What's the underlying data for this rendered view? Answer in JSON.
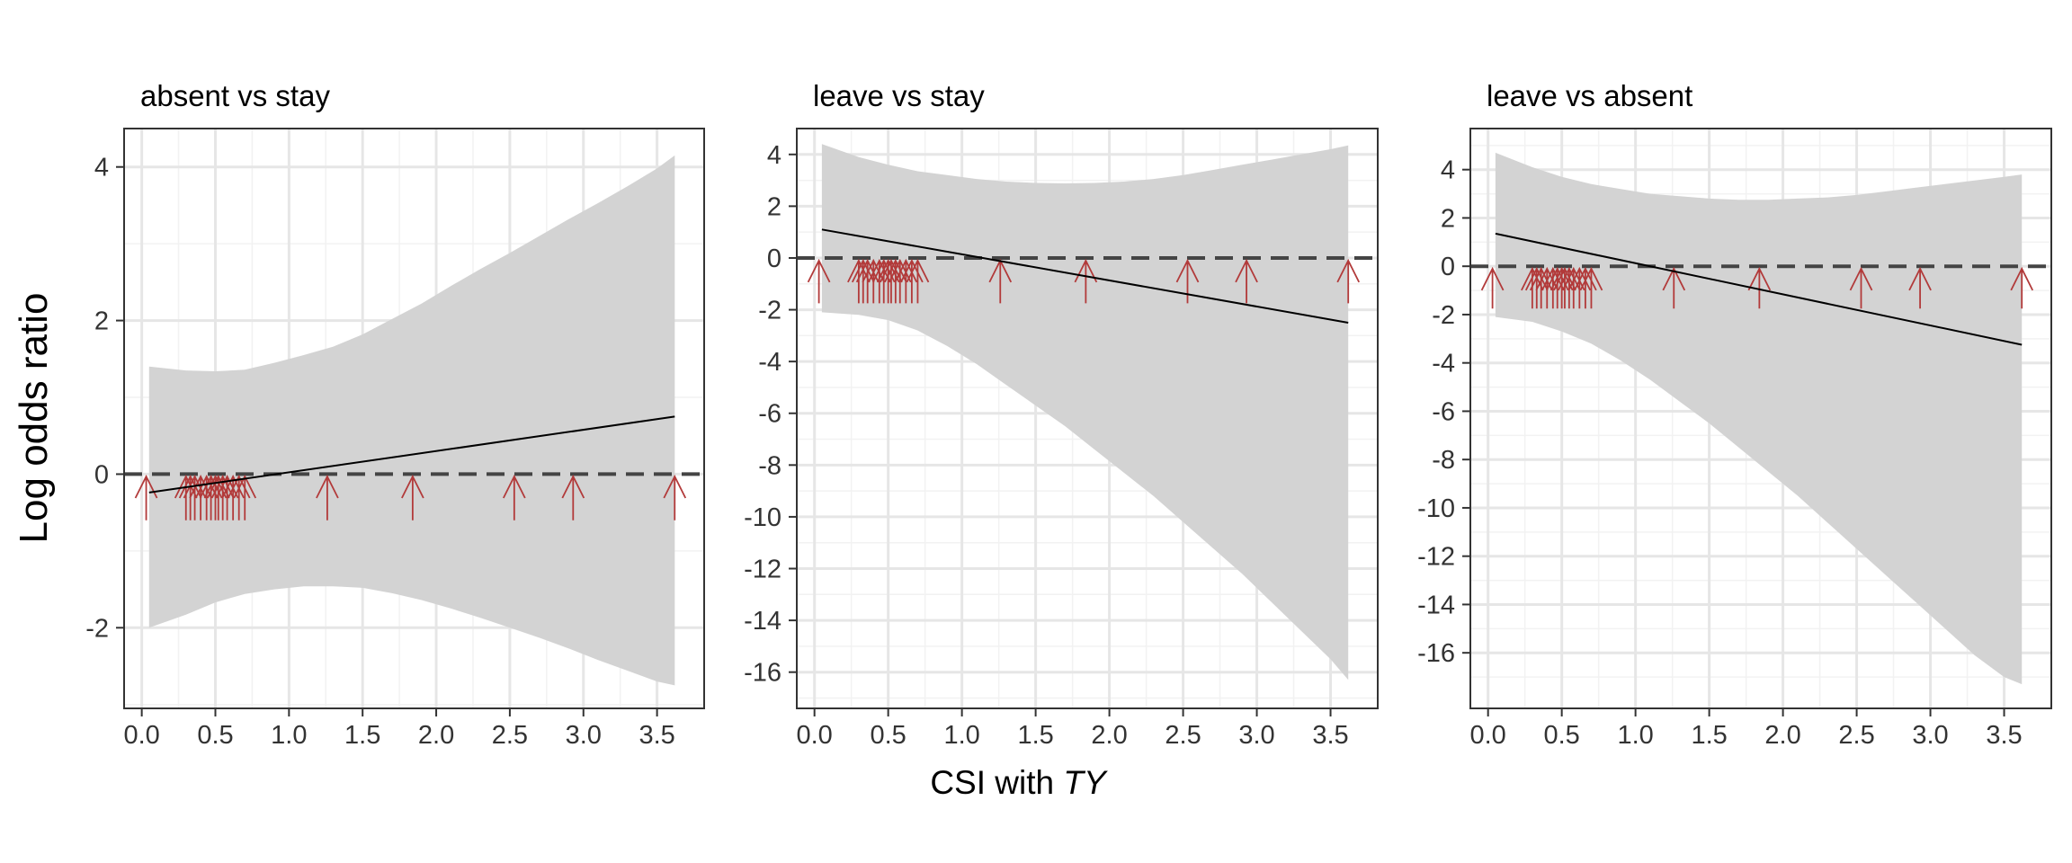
{
  "figure": {
    "ylabel": "Log odds ratio",
    "xlabel_main": "CSI with ",
    "xlabel_italic": "TY"
  },
  "colors": {
    "band": "#d3d3d3",
    "line": "#000000",
    "reference": "#444444",
    "rug": "#b23a3a",
    "grid_major": "#e6e6e6",
    "grid_minor": "#f2f2f2",
    "border": "#333333"
  },
  "chart_data": [
    {
      "type": "line",
      "title": "absent vs stay",
      "xlim": [
        -0.12,
        3.82
      ],
      "ylim": [
        -3.05,
        4.5
      ],
      "xticks": [
        0.0,
        0.5,
        1.0,
        1.5,
        2.0,
        2.5,
        3.0,
        3.5
      ],
      "xtick_labels": [
        "0.0",
        "0.5",
        "1.0",
        "1.5",
        "2.0",
        "2.5",
        "3.0",
        "3.5"
      ],
      "yticks": [
        -2,
        0,
        2,
        4
      ],
      "ytick_labels": [
        "-2",
        "0",
        "2",
        "4"
      ],
      "reference_line": 0,
      "fit": {
        "x": [
          0.05,
          3.62
        ],
        "y": [
          -0.24,
          0.75
        ]
      },
      "ci_upper": {
        "x": [
          0.05,
          0.3,
          0.5,
          0.7,
          0.9,
          1.1,
          1.3,
          1.5,
          1.7,
          1.9,
          2.1,
          2.3,
          2.5,
          2.7,
          2.9,
          3.1,
          3.3,
          3.5,
          3.62
        ],
        "y": [
          1.4,
          1.35,
          1.34,
          1.36,
          1.45,
          1.55,
          1.66,
          1.82,
          2.02,
          2.22,
          2.45,
          2.67,
          2.88,
          3.1,
          3.32,
          3.53,
          3.75,
          3.98,
          4.15
        ]
      },
      "ci_lower": {
        "x": [
          0.05,
          0.3,
          0.5,
          0.7,
          0.9,
          1.1,
          1.3,
          1.5,
          1.7,
          1.9,
          2.1,
          2.3,
          2.5,
          2.7,
          2.9,
          3.1,
          3.3,
          3.5,
          3.62
        ],
        "y": [
          -2.0,
          -1.83,
          -1.67,
          -1.56,
          -1.5,
          -1.46,
          -1.46,
          -1.48,
          -1.55,
          -1.64,
          -1.75,
          -1.87,
          -2.0,
          -2.13,
          -2.27,
          -2.42,
          -2.56,
          -2.7,
          -2.75
        ]
      },
      "rug_x": [
        0.03,
        0.3,
        0.33,
        0.36,
        0.4,
        0.44,
        0.47,
        0.5,
        0.52,
        0.55,
        0.58,
        0.62,
        0.66,
        0.7,
        1.26,
        1.84,
        2.53,
        2.93,
        3.62
      ],
      "rug_arrow_top": -0.03,
      "rug_arrow_bottom": -0.6
    },
    {
      "type": "line",
      "title": "leave vs stay",
      "xlim": [
        -0.12,
        3.82
      ],
      "ylim": [
        -17.4,
        5.0
      ],
      "xticks": [
        0.0,
        0.5,
        1.0,
        1.5,
        2.0,
        2.5,
        3.0,
        3.5
      ],
      "xtick_labels": [
        "0.0",
        "0.5",
        "1.0",
        "1.5",
        "2.0",
        "2.5",
        "3.0",
        "3.5"
      ],
      "yticks": [
        -16,
        -14,
        -12,
        -10,
        -8,
        -6,
        -4,
        -2,
        0,
        2,
        4
      ],
      "ytick_labels": [
        "-16",
        "-14",
        "-12",
        "-10",
        "-8",
        "-6",
        "-4",
        "-2",
        "0",
        "2",
        "4"
      ],
      "reference_line": 0,
      "fit": {
        "x": [
          0.05,
          3.62
        ],
        "y": [
          1.1,
          -2.5
        ]
      },
      "ci_upper": {
        "x": [
          0.05,
          0.3,
          0.5,
          0.7,
          0.9,
          1.1,
          1.3,
          1.5,
          1.7,
          1.9,
          2.1,
          2.3,
          2.5,
          2.7,
          2.9,
          3.1,
          3.3,
          3.5,
          3.62
        ],
        "y": [
          4.4,
          3.9,
          3.6,
          3.35,
          3.2,
          3.05,
          2.95,
          2.9,
          2.88,
          2.9,
          2.95,
          3.05,
          3.2,
          3.4,
          3.6,
          3.8,
          4.0,
          4.2,
          4.35
        ]
      },
      "ci_lower": {
        "x": [
          0.05,
          0.3,
          0.5,
          0.7,
          0.9,
          1.1,
          1.3,
          1.5,
          1.7,
          1.9,
          2.1,
          2.3,
          2.5,
          2.7,
          2.9,
          3.1,
          3.3,
          3.5,
          3.62
        ],
        "y": [
          -2.1,
          -2.2,
          -2.4,
          -2.8,
          -3.4,
          -4.1,
          -4.9,
          -5.7,
          -6.5,
          -7.4,
          -8.3,
          -9.2,
          -10.2,
          -11.2,
          -12.2,
          -13.3,
          -14.4,
          -15.5,
          -16.3
        ]
      },
      "rug_x": [
        0.03,
        0.3,
        0.33,
        0.36,
        0.4,
        0.44,
        0.47,
        0.5,
        0.52,
        0.55,
        0.58,
        0.62,
        0.66,
        0.7,
        1.26,
        1.84,
        2.53,
        2.93,
        3.62
      ],
      "rug_arrow_top": -0.1,
      "rug_arrow_bottom": -1.75
    },
    {
      "type": "line",
      "title": "leave vs absent",
      "xlim": [
        -0.12,
        3.82
      ],
      "ylim": [
        -18.3,
        5.7
      ],
      "xticks": [
        0.0,
        0.5,
        1.0,
        1.5,
        2.0,
        2.5,
        3.0,
        3.5
      ],
      "xtick_labels": [
        "0.0",
        "0.5",
        "1.0",
        "1.5",
        "2.0",
        "2.5",
        "3.0",
        "3.5"
      ],
      "yticks": [
        -16,
        -14,
        -12,
        -10,
        -8,
        -6,
        -4,
        -2,
        0,
        2,
        4
      ],
      "ytick_labels": [
        "-16",
        "-14",
        "-12",
        "-10",
        "-8",
        "-6",
        "-4",
        "-2",
        "0",
        "2",
        "4"
      ],
      "reference_line": 0,
      "fit": {
        "x": [
          0.05,
          3.62
        ],
        "y": [
          1.35,
          -3.25
        ]
      },
      "ci_upper": {
        "x": [
          0.05,
          0.3,
          0.5,
          0.7,
          0.9,
          1.1,
          1.3,
          1.5,
          1.7,
          1.9,
          2.1,
          2.3,
          2.5,
          2.7,
          2.9,
          3.1,
          3.3,
          3.5,
          3.62
        ],
        "y": [
          4.7,
          4.1,
          3.7,
          3.4,
          3.2,
          3.0,
          2.9,
          2.8,
          2.75,
          2.75,
          2.8,
          2.85,
          2.95,
          3.1,
          3.25,
          3.4,
          3.55,
          3.7,
          3.8
        ]
      },
      "ci_lower": {
        "x": [
          0.05,
          0.3,
          0.5,
          0.7,
          0.9,
          1.1,
          1.3,
          1.5,
          1.7,
          1.9,
          2.1,
          2.3,
          2.5,
          2.7,
          2.9,
          3.1,
          3.3,
          3.5,
          3.62
        ],
        "y": [
          -2.1,
          -2.3,
          -2.7,
          -3.2,
          -3.9,
          -4.7,
          -5.6,
          -6.5,
          -7.5,
          -8.5,
          -9.5,
          -10.6,
          -11.7,
          -12.8,
          -13.9,
          -15.0,
          -16.1,
          -17.0,
          -17.3
        ]
      },
      "rug_x": [
        0.03,
        0.3,
        0.33,
        0.36,
        0.4,
        0.44,
        0.47,
        0.5,
        0.52,
        0.55,
        0.58,
        0.62,
        0.66,
        0.7,
        1.26,
        1.84,
        2.53,
        2.93,
        3.62
      ],
      "rug_arrow_top": -0.1,
      "rug_arrow_bottom": -1.75
    }
  ]
}
